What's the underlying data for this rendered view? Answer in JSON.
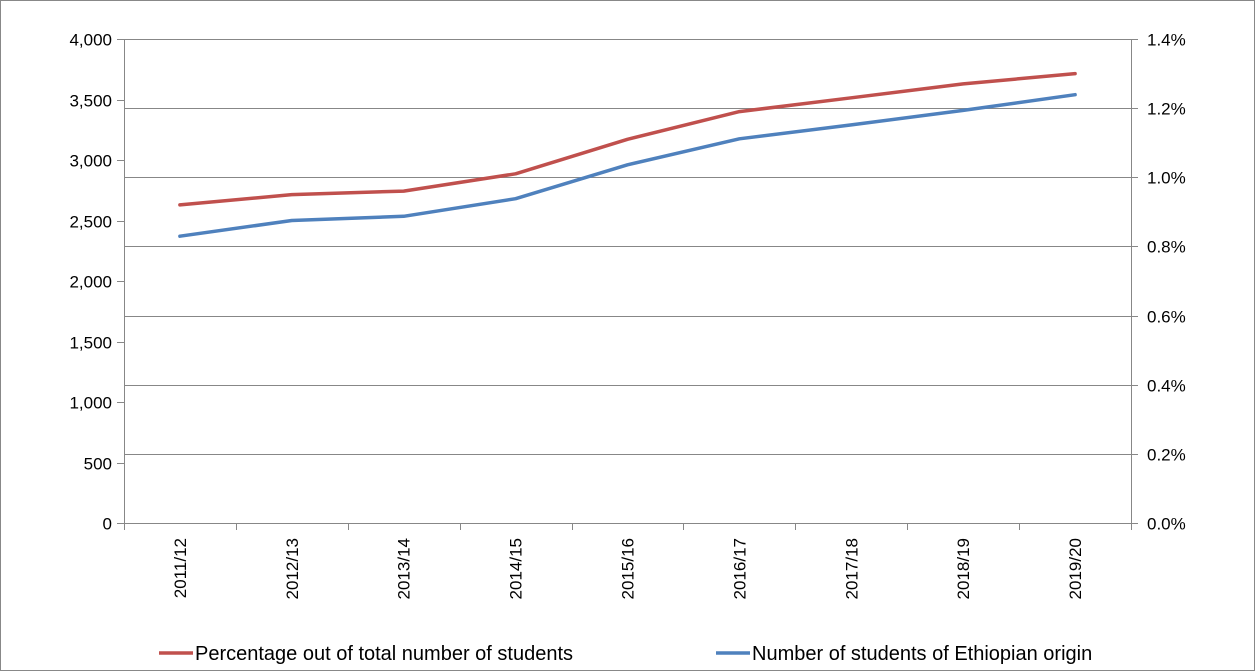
{
  "chart_data": {
    "type": "line",
    "categories": [
      "2011/12",
      "2012/13",
      "2013/14",
      "2014/15",
      "2015/16",
      "2016/17",
      "2017/18",
      "2018/19",
      "2019/20"
    ],
    "series": [
      {
        "name": "Percentage out of total number of students",
        "axis": "right",
        "color": "#c0504d",
        "values": [
          0.92,
          0.95,
          0.96,
          1.01,
          1.11,
          1.19,
          1.23,
          1.27,
          1.3
        ]
      },
      {
        "name": "Number of students of Ethiopian origin",
        "axis": "left",
        "color": "#4f81bd",
        "values": [
          2370,
          2500,
          2535,
          2680,
          2960,
          3175,
          3290,
          3410,
          3540
        ]
      }
    ],
    "y_left": {
      "min": 0,
      "max": 4000,
      "ticks": [
        0,
        500,
        1000,
        1500,
        2000,
        2500,
        3000,
        3500,
        4000
      ],
      "tick_labels": [
        "0",
        "500",
        "1,000",
        "1,500",
        "2,000",
        "2,500",
        "3,000",
        "3,500",
        "4,000"
      ]
    },
    "y_right": {
      "min": 0,
      "max": 1.4,
      "ticks": [
        0,
        0.2,
        0.4,
        0.6,
        0.8,
        1.0,
        1.2,
        1.4
      ],
      "tick_labels": [
        "0.0%",
        "0.2%",
        "0.4%",
        "0.6%",
        "0.8%",
        "1.0%",
        "1.2%",
        "1.4%"
      ]
    },
    "title": "",
    "xlabel": "",
    "ylabel": "",
    "grid": "right-axis horizontal lines",
    "legend": "bottom"
  }
}
